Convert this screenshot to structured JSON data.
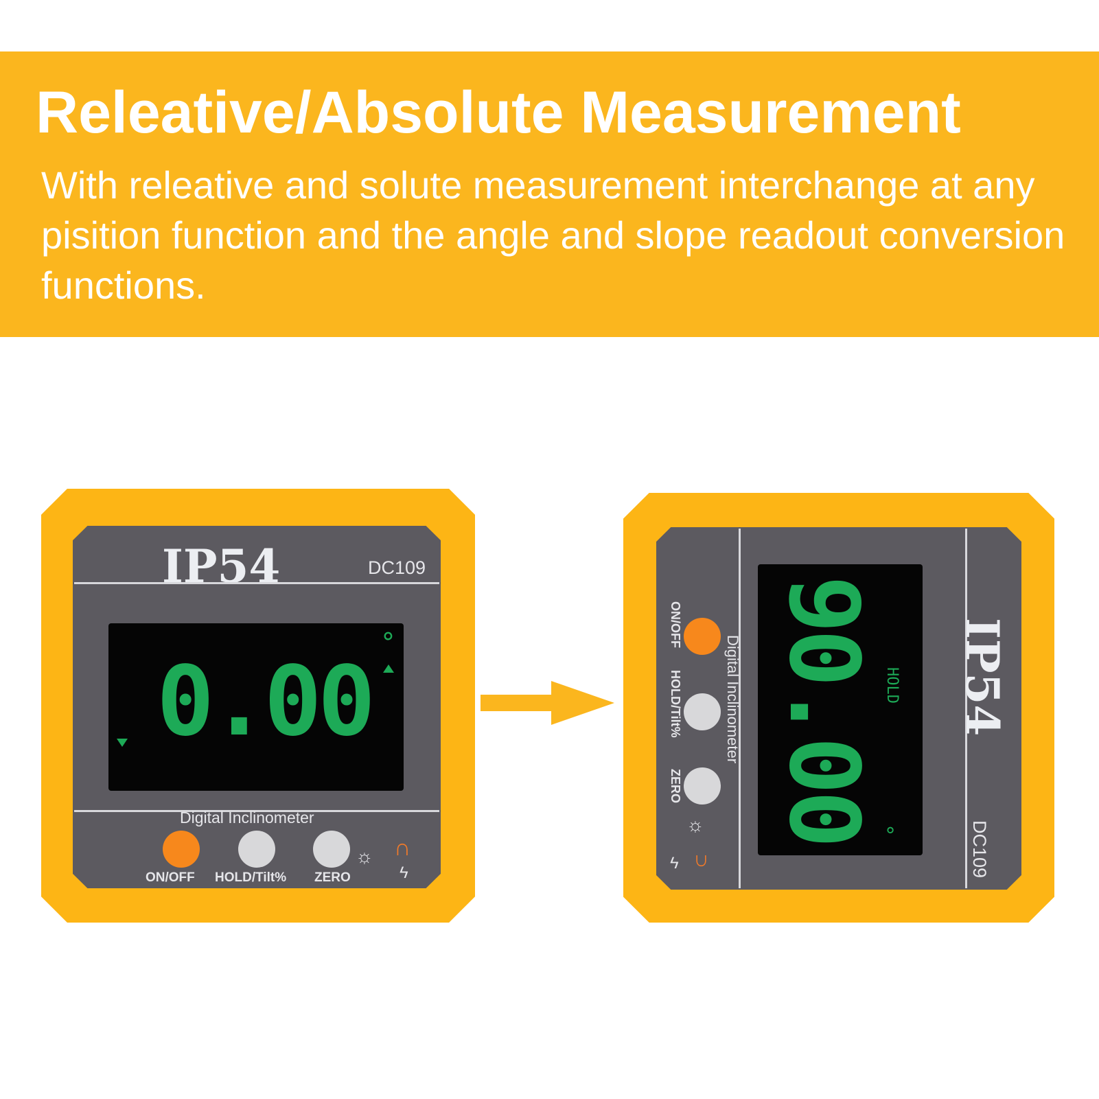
{
  "banner": {
    "title": "Releative/Absolute Measurement",
    "description": "With releative and solute measurement interchange at any pisition function and the angle and slope readout conversion functions."
  },
  "device": {
    "rating": "IP54",
    "model": "DC109",
    "name": "Digital Inclinometer",
    "buttons": [
      "ON/OFF",
      "HOLD/Tilt%",
      "ZERO"
    ],
    "hold_indicator": "HOLD"
  },
  "left_display": {
    "reading": "0.00",
    "unit": "°"
  },
  "right_display": {
    "reading": "90.00",
    "unit": "°"
  },
  "colors": {
    "banner": "#fbb61e",
    "housing": "#fdb515",
    "face": "#5c5a60",
    "lcd_digits": "#1daa57"
  }
}
